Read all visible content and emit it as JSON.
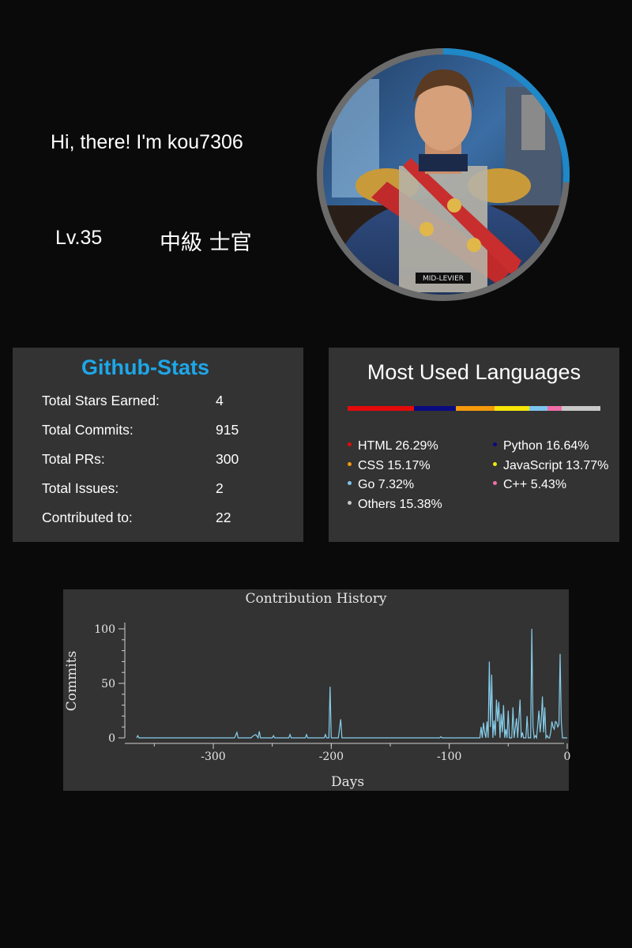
{
  "profile": {
    "greeting": "Hi, there! I'm kou7306",
    "level": "Lv.35",
    "rank": "中級 士官",
    "badge_text": "MID-LEVIER",
    "progress_fraction": 0.26
  },
  "stats": {
    "title": "Github-Stats",
    "rows": [
      {
        "label": "Total Stars Earned:",
        "value": "4"
      },
      {
        "label": "Total Commits:",
        "value": "915"
      },
      {
        "label": "Total PRs:",
        "value": "300"
      },
      {
        "label": "Total Issues:",
        "value": "2"
      },
      {
        "label": "Contributed to:",
        "value": "22"
      }
    ]
  },
  "languages": {
    "title": "Most Used Languages",
    "items": [
      {
        "label": "HTML 26.29%",
        "percent": 26.29,
        "color": "#e40a0a"
      },
      {
        "label": "Python 16.64%",
        "percent": 16.64,
        "color": "#0a0a80"
      },
      {
        "label": "CSS 15.17%",
        "percent": 15.17,
        "color": "#f59a0a"
      },
      {
        "label": "JavaScript 13.77%",
        "percent": 13.77,
        "color": "#f5e60a"
      },
      {
        "label": "Go 7.32%",
        "percent": 7.32,
        "color": "#7cc4f0"
      },
      {
        "label": "C++ 5.43%",
        "percent": 5.43,
        "color": "#f06eaa"
      },
      {
        "label": "Others 15.38%",
        "percent": 15.38,
        "color": "#c8c8c8"
      }
    ]
  },
  "colors": {
    "accent": "#1ea7e9",
    "panel": "#333333",
    "background": "#0a0a0a",
    "ring": "#6b6b6b",
    "line": "#87ceeb"
  },
  "chart_data": {
    "type": "line",
    "title": "Contribution History",
    "xlabel": "Days",
    "ylabel": "Commits",
    "xlim": [
      -365,
      0
    ],
    "ylim": [
      0,
      100
    ],
    "xticks": [
      -300,
      -200,
      -100,
      0
    ],
    "yticks": [
      0,
      50,
      100
    ],
    "grid": false,
    "series": [
      {
        "color": "#87ceeb",
        "points": [
          [
            -365,
            0
          ],
          [
            -364,
            2
          ],
          [
            -363,
            0
          ],
          [
            -282,
            0
          ],
          [
            -280,
            5
          ],
          [
            -279,
            0
          ],
          [
            -268,
            0
          ],
          [
            -266,
            2
          ],
          [
            -264,
            3
          ],
          [
            -262,
            0
          ],
          [
            -261,
            6
          ],
          [
            -260,
            0
          ],
          [
            -250,
            0
          ],
          [
            -249,
            2
          ],
          [
            -248,
            0
          ],
          [
            -236,
            0
          ],
          [
            -235,
            3
          ],
          [
            -234,
            0
          ],
          [
            -222,
            0
          ],
          [
            -221,
            3
          ],
          [
            -220,
            0
          ],
          [
            -206,
            0
          ],
          [
            -205,
            3
          ],
          [
            -204,
            0
          ],
          [
            -202,
            0
          ],
          [
            -201,
            47
          ],
          [
            -200,
            0
          ],
          [
            -194,
            0
          ],
          [
            -192,
            17
          ],
          [
            -191,
            0
          ],
          [
            -108,
            0
          ],
          [
            -107,
            1
          ],
          [
            -106,
            0
          ],
          [
            -74,
            0
          ],
          [
            -73,
            10
          ],
          [
            -72,
            0
          ],
          [
            -71,
            14
          ],
          [
            -70,
            5
          ],
          [
            -69,
            0
          ],
          [
            -68,
            15
          ],
          [
            -67,
            0
          ],
          [
            -66,
            70
          ],
          [
            -65,
            10
          ],
          [
            -64,
            58
          ],
          [
            -63,
            0
          ],
          [
            -62,
            16
          ],
          [
            -61,
            2
          ],
          [
            -60,
            35
          ],
          [
            -59,
            15
          ],
          [
            -58,
            33
          ],
          [
            -57,
            0
          ],
          [
            -56,
            22
          ],
          [
            -55,
            5
          ],
          [
            -54,
            30
          ],
          [
            -53,
            0
          ],
          [
            -52,
            8
          ],
          [
            -51,
            0
          ],
          [
            -50,
            25
          ],
          [
            -49,
            0
          ],
          [
            -47,
            0
          ],
          [
            -46,
            28
          ],
          [
            -45,
            0
          ],
          [
            -43,
            18
          ],
          [
            -42,
            0
          ],
          [
            -40,
            35
          ],
          [
            -39,
            0
          ],
          [
            -38,
            5
          ],
          [
            -37,
            0
          ],
          [
            -35,
            0
          ],
          [
            -34,
            20
          ],
          [
            -33,
            0
          ],
          [
            -31,
            0
          ],
          [
            -30,
            100
          ],
          [
            -29,
            10
          ],
          [
            -28,
            0
          ],
          [
            -27,
            2
          ],
          [
            -26,
            0
          ],
          [
            -25,
            12
          ],
          [
            -24,
            25
          ],
          [
            -23,
            5
          ],
          [
            -22,
            15
          ],
          [
            -21,
            38
          ],
          [
            -20,
            5
          ],
          [
            -19,
            28
          ],
          [
            -18,
            0
          ],
          [
            -17,
            2
          ],
          [
            -16,
            0
          ],
          [
            -15,
            0
          ],
          [
            -14,
            5
          ],
          [
            -13,
            15
          ],
          [
            -12,
            10
          ],
          [
            -11,
            8
          ],
          [
            -10,
            15
          ],
          [
            -9,
            14
          ],
          [
            -8,
            10
          ],
          [
            -7,
            12
          ],
          [
            -6,
            77
          ],
          [
            -5,
            15
          ],
          [
            -4,
            0
          ],
          [
            -3,
            0
          ],
          [
            -1,
            0
          ],
          [
            0,
            0
          ]
        ]
      }
    ]
  }
}
